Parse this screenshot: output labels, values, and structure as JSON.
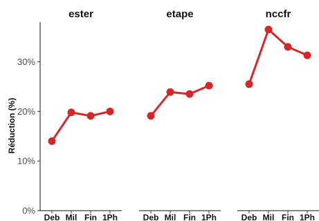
{
  "chart_data": {
    "type": "line",
    "ylabel": "Réduction (%)",
    "ylim": [
      0,
      38
    ],
    "yticks": [
      0,
      10,
      20,
      30
    ],
    "ytick_labels": [
      "0%",
      "10%",
      "20%",
      "30%"
    ],
    "categories": [
      "Deb",
      "Mil",
      "Fin",
      "1Ph"
    ],
    "color": "#d62728",
    "grid": false,
    "facets": [
      {
        "title": "ester",
        "values": [
          14.0,
          19.8,
          19.1,
          20.0
        ]
      },
      {
        "title": "etape",
        "values": [
          19.1,
          23.9,
          23.5,
          25.2
        ]
      },
      {
        "title": "nccfr",
        "values": [
          25.5,
          36.5,
          33.0,
          31.3
        ]
      }
    ]
  }
}
